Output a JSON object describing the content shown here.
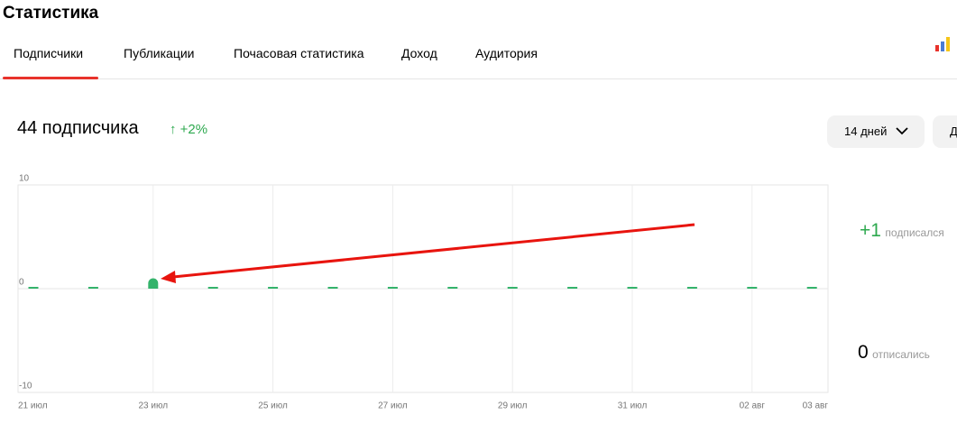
{
  "header": {
    "title": "Статистика"
  },
  "tabs": [
    "Подписчики",
    "Публикации",
    "Почасовая статистика",
    "Доход",
    "Аудитория"
  ],
  "summary": {
    "count": "44 подписчика",
    "growth": "+2%"
  },
  "buttons": [
    "14 дней",
    "Д"
  ],
  "stats": [
    {
      "value": "+1",
      "label": "подписался"
    },
    {
      "value": "0",
      "label": "отписались"
    }
  ],
  "chart_data": {
    "type": "bar",
    "categories": [
      "21 июл",
      null,
      "23 июл",
      null,
      "25 июл",
      null,
      "27 июл",
      null,
      "29 июл",
      null,
      "31 июл",
      null,
      "02 авг",
      "03 авг"
    ],
    "values": [
      0,
      0,
      1,
      0,
      0,
      0,
      0,
      0,
      0,
      0,
      0,
      0,
      0,
      0
    ],
    "color": "#34b36b",
    "ylim": [
      -10,
      10
    ],
    "yticks": [
      -10,
      0,
      10
    ],
    "grid": true
  }
}
